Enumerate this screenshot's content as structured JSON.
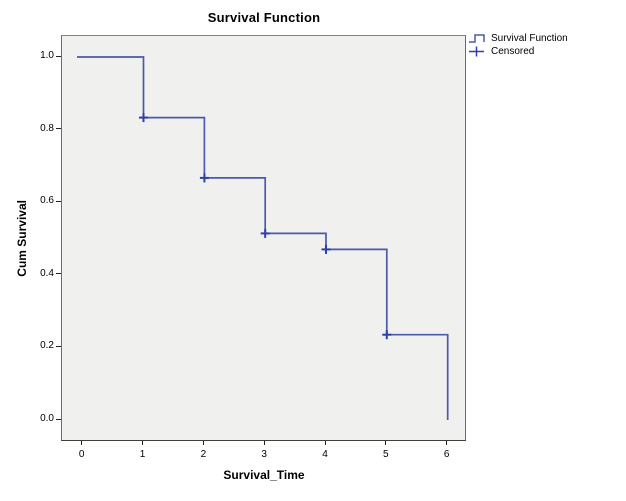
{
  "title": "Survival Function",
  "chart_data": {
    "type": "line",
    "subtype": "step-survival",
    "title": "Survival Function",
    "xlabel": "Survival_Time",
    "ylabel": "Cum Survival",
    "x_ticks": [
      "0",
      "1",
      "2",
      "3",
      "4",
      "5",
      "6"
    ],
    "y_ticks": [
      "1.0",
      "0.8",
      "0.6",
      "0.4",
      "0.2",
      "0.0"
    ],
    "xlim": [
      -0.35,
      6.35
    ],
    "ylim": [
      -0.06,
      1.06
    ],
    "grid": false,
    "legend_position": "top-right-outside",
    "series": [
      {
        "name": "Survival Function",
        "type": "step",
        "color": "#4A5AA9",
        "x": [
          0,
          1,
          2,
          3,
          4,
          5,
          6
        ],
        "y": [
          1.0,
          0.833,
          0.667,
          0.514,
          0.47,
          0.235,
          0.0
        ],
        "note": "y[i] = cumulative survival immediately after time x[i]"
      },
      {
        "name": "Censored",
        "type": "plus-marker",
        "color": "#2F3FA8",
        "points": [
          [
            1,
            0.833
          ],
          [
            2,
            0.667
          ],
          [
            3,
            0.514
          ],
          [
            4,
            0.47
          ],
          [
            5,
            0.235
          ]
        ]
      }
    ]
  },
  "legend": {
    "entries": [
      {
        "label": "Survival Function",
        "icon": "step-line-icon"
      },
      {
        "label": "Censored",
        "icon": "plus-marker-icon"
      }
    ]
  },
  "colors": {
    "line": "#4A5AA9",
    "censored": "#2F3FA8",
    "plot_bg": "#F0F0EF",
    "plot_border": "#6b6b6b",
    "text": "#000000"
  }
}
